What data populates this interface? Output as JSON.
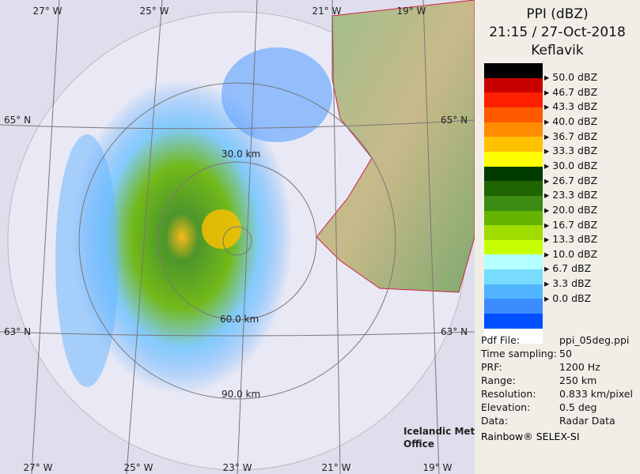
{
  "header": {
    "title": "PPI (dBZ)",
    "datetime": "21:15 / 27-Oct-2018",
    "station": "Keflavik"
  },
  "legend": {
    "swatches": [
      "#000000",
      "#c80000",
      "#ff2000",
      "#ff5a00",
      "#ff8c00",
      "#ffc000",
      "#ffff00",
      "#003c00",
      "#1e6400",
      "#3c8c14",
      "#64b400",
      "#a0dc00",
      "#c8ff00",
      "#b4ffff",
      "#78dcff",
      "#50b4ff",
      "#3c8cff",
      "#0050ff",
      "#ffffff"
    ],
    "labels": [
      "50.0 dBZ",
      "46.7 dBZ",
      "43.3 dBZ",
      "40.0 dBZ",
      "36.7 dBZ",
      "33.3 dBZ",
      "30.0 dBZ",
      "26.7 dBZ",
      "23.3 dBZ",
      "20.0 dBZ",
      "16.7 dBZ",
      "13.3 dBZ",
      "10.0 dBZ",
      "6.7 dBZ",
      "3.3 dBZ",
      "0.0 dBZ"
    ]
  },
  "info": {
    "rows": [
      [
        "Pdf File:",
        "ppi_05deg.ppi"
      ],
      [
        "Time sampling:",
        "50"
      ],
      [
        "PRF:",
        "1200 Hz"
      ],
      [
        "Range:",
        "250 km"
      ],
      [
        "Resolution:",
        "0.833 km/pixel"
      ],
      [
        "Elevation:",
        "0.5 deg"
      ],
      [
        "Data:",
        "Radar Data"
      ]
    ]
  },
  "footer": "Rainbow® SELEX-SI",
  "map": {
    "lon_top": [
      "27° W",
      "25° W",
      "21° W",
      "19° W"
    ],
    "lon_bottom": [
      "27° W",
      "25° W",
      "23° W",
      "21° W",
      "19° W"
    ],
    "lat_left": [
      "65° N",
      "63° N"
    ],
    "lat_right": [
      "65° N",
      "63° N"
    ],
    "ranges": [
      "30.0 km",
      "60.0 km",
      "90.0 km"
    ],
    "logo": [
      "Icelandic Met",
      "Office"
    ]
  }
}
